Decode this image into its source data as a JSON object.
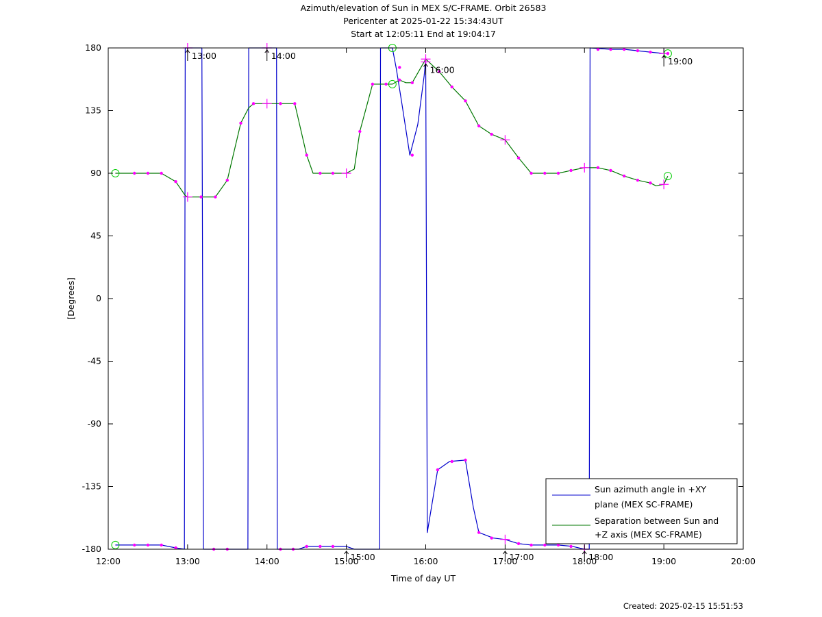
{
  "chart_data": {
    "type": "line",
    "title_lines": [
      "Azimuth/elevation of Sun in MEX S/C-FRAME.  Orbit 26583",
      "Pericenter at 2025-01-22 15:34:43UT",
      "Start at 12:05:11 End at 19:04:17"
    ],
    "xlabel": "Time of day UT",
    "ylabel": "[Degrees]",
    "xlim": [
      12,
      20
    ],
    "ylim": [
      -180,
      180
    ],
    "x_tick_labels": [
      {
        "x": 12,
        "label": "12:00"
      },
      {
        "x": 13,
        "label": "13:00"
      },
      {
        "x": 14,
        "label": "14:00"
      },
      {
        "x": 15,
        "label": "15:00"
      },
      {
        "x": 16,
        "label": "16:00"
      },
      {
        "x": 17,
        "label": "17:00"
      },
      {
        "x": 18,
        "label": "18:00"
      },
      {
        "x": 19,
        "label": "19:00"
      },
      {
        "x": 20,
        "label": "20:00"
      }
    ],
    "y_tick_labels": [
      {
        "y": 180,
        "label": "180"
      },
      {
        "y": 135,
        "label": "135"
      },
      {
        "y": 90,
        "label": "90"
      },
      {
        "y": 45,
        "label": "45"
      },
      {
        "y": 0,
        "label": "0"
      },
      {
        "y": -45,
        "label": "-45"
      },
      {
        "y": -90,
        "label": "-90"
      },
      {
        "y": -135,
        "label": "-135"
      },
      {
        "y": -180,
        "label": "-180"
      }
    ],
    "grid": false,
    "legend_position": "bottom-right",
    "series": [
      {
        "name": "Sun azimuth angle in +XY plane (MEX SC-FRAME)",
        "legend_lines": [
          "Sun azimuth angle in +XY",
          "plane (MEX SC-FRAME)"
        ],
        "color": "#0000cc",
        "points": [
          [
            12.09,
            -177
          ],
          [
            12.33,
            -177
          ],
          [
            12.5,
            -177
          ],
          [
            12.67,
            -177
          ],
          [
            12.85,
            -179
          ],
          [
            12.96,
            -180
          ],
          [
            12.97,
            180
          ],
          [
            13.18,
            180
          ],
          [
            13.2,
            -180
          ],
          [
            13.5,
            -180
          ],
          [
            13.76,
            -180
          ],
          [
            13.77,
            180
          ],
          [
            14.12,
            180
          ],
          [
            14.13,
            -180
          ],
          [
            14.4,
            -180
          ],
          [
            14.5,
            -178
          ],
          [
            15.0,
            -178
          ],
          [
            15.1,
            -180
          ],
          [
            15.42,
            -180
          ],
          [
            15.43,
            180
          ],
          [
            15.58,
            180
          ],
          [
            15.63,
            165
          ],
          [
            15.7,
            140
          ],
          [
            15.8,
            103
          ],
          [
            15.9,
            125
          ],
          [
            15.98,
            160
          ],
          [
            16.0,
            172
          ],
          [
            16.02,
            -168
          ],
          [
            16.15,
            -123
          ],
          [
            16.3,
            -117
          ],
          [
            16.5,
            -116
          ],
          [
            16.6,
            -150
          ],
          [
            16.67,
            -168
          ],
          [
            16.85,
            -172
          ],
          [
            17.0,
            -173
          ],
          [
            17.17,
            -176
          ],
          [
            17.33,
            -177
          ],
          [
            17.67,
            -177
          ],
          [
            17.85,
            -178
          ],
          [
            18.0,
            -180
          ],
          [
            18.06,
            -180
          ],
          [
            18.07,
            180
          ],
          [
            18.33,
            179
          ],
          [
            18.5,
            179
          ],
          [
            18.67,
            178
          ],
          [
            18.83,
            177
          ],
          [
            19.0,
            176
          ],
          [
            19.05,
            176
          ]
        ]
      },
      {
        "name": "Separation between Sun and +Z axis (MEX SC-FRAME)",
        "legend_lines": [
          "Separation between Sun and",
          "+Z axis (MEX SC-FRAME)"
        ],
        "color": "#007700",
        "points": [
          [
            12.09,
            90
          ],
          [
            12.33,
            90
          ],
          [
            12.5,
            90
          ],
          [
            12.67,
            90
          ],
          [
            12.85,
            84
          ],
          [
            12.97,
            74
          ],
          [
            13.0,
            73
          ],
          [
            13.17,
            73
          ],
          [
            13.35,
            73
          ],
          [
            13.5,
            85
          ],
          [
            13.67,
            126
          ],
          [
            13.77,
            137
          ],
          [
            13.83,
            140
          ],
          [
            14.0,
            140
          ],
          [
            14.17,
            140
          ],
          [
            14.35,
            140
          ],
          [
            14.5,
            103
          ],
          [
            14.58,
            90
          ],
          [
            14.83,
            90
          ],
          [
            15.0,
            90
          ],
          [
            15.1,
            93
          ],
          [
            15.17,
            120
          ],
          [
            15.33,
            154
          ],
          [
            15.58,
            154
          ],
          [
            15.67,
            157
          ],
          [
            15.75,
            155
          ],
          [
            15.83,
            155
          ],
          [
            16.0,
            172
          ],
          [
            16.17,
            163
          ],
          [
            16.33,
            152
          ],
          [
            16.5,
            142
          ],
          [
            16.67,
            124
          ],
          [
            16.83,
            118
          ],
          [
            17.0,
            114
          ],
          [
            17.17,
            101
          ],
          [
            17.33,
            90
          ],
          [
            17.5,
            90
          ],
          [
            17.67,
            90
          ],
          [
            17.83,
            92
          ],
          [
            18.0,
            94
          ],
          [
            18.17,
            94
          ],
          [
            18.33,
            92
          ],
          [
            18.5,
            88
          ],
          [
            18.67,
            85
          ],
          [
            18.83,
            83
          ],
          [
            18.9,
            81
          ],
          [
            19.0,
            82
          ],
          [
            19.05,
            88
          ]
        ]
      }
    ],
    "markers": {
      "dots": [
        [
          12.33,
          90
        ],
        [
          12.5,
          90
        ],
        [
          12.67,
          90
        ],
        [
          12.85,
          84
        ],
        [
          13.17,
          73
        ],
        [
          13.35,
          73
        ],
        [
          13.5,
          85
        ],
        [
          13.67,
          126
        ],
        [
          13.83,
          140
        ],
        [
          14.17,
          140
        ],
        [
          14.35,
          140
        ],
        [
          14.5,
          103
        ],
        [
          14.67,
          90
        ],
        [
          14.83,
          90
        ],
        [
          15.17,
          120
        ],
        [
          15.33,
          154
        ],
        [
          15.5,
          154
        ],
        [
          15.67,
          157
        ],
        [
          15.83,
          155
        ],
        [
          16.17,
          163
        ],
        [
          16.33,
          152
        ],
        [
          16.5,
          142
        ],
        [
          16.67,
          124
        ],
        [
          16.83,
          118
        ],
        [
          17.17,
          101
        ],
        [
          17.33,
          90
        ],
        [
          17.5,
          90
        ],
        [
          17.67,
          90
        ],
        [
          17.83,
          92
        ],
        [
          18.17,
          94
        ],
        [
          18.33,
          92
        ],
        [
          18.5,
          88
        ],
        [
          18.67,
          85
        ],
        [
          18.83,
          83
        ],
        [
          12.33,
          -177
        ],
        [
          12.5,
          -177
        ],
        [
          12.67,
          -177
        ],
        [
          12.85,
          -179
        ],
        [
          13.33,
          -180
        ],
        [
          13.5,
          -180
        ],
        [
          14.17,
          -180
        ],
        [
          14.33,
          -180
        ],
        [
          14.5,
          -178
        ],
        [
          14.67,
          -178
        ],
        [
          14.83,
          -178
        ],
        [
          15.67,
          166
        ],
        [
          15.83,
          103
        ],
        [
          16.15,
          -123
        ],
        [
          16.33,
          -117
        ],
        [
          16.5,
          -116
        ],
        [
          16.67,
          -168
        ],
        [
          16.83,
          -172
        ],
        [
          17.17,
          -176
        ],
        [
          17.33,
          -177
        ],
        [
          17.5,
          -177
        ],
        [
          17.67,
          -177
        ],
        [
          17.83,
          -178
        ],
        [
          18.17,
          179
        ],
        [
          18.33,
          179
        ],
        [
          18.5,
          179
        ],
        [
          18.67,
          178
        ],
        [
          18.83,
          177
        ],
        [
          19.05,
          176
        ]
      ],
      "crosses": [
        [
          13.0,
          73
        ],
        [
          14.0,
          140
        ],
        [
          15.0,
          90
        ],
        [
          16.0,
          172
        ],
        [
          17.0,
          114
        ],
        [
          18.0,
          94
        ],
        [
          19.0,
          82
        ],
        [
          13.0,
          180
        ],
        [
          14.0,
          180
        ],
        [
          16.0,
          170
        ],
        [
          17.0,
          -173
        ],
        [
          18.0,
          -180
        ],
        [
          19.0,
          176
        ]
      ],
      "circles": [
        [
          12.09,
          90
        ],
        [
          12.09,
          -177
        ],
        [
          15.58,
          180
        ],
        [
          15.58,
          154
        ],
        [
          19.05,
          88
        ],
        [
          19.05,
          176
        ]
      ]
    },
    "time_annotations": [
      {
        "x": 13.0,
        "y": 180,
        "label": "13:00"
      },
      {
        "x": 14.0,
        "y": 180,
        "label": "14:00"
      },
      {
        "x": 15.0,
        "y": -180,
        "label": "15:00"
      },
      {
        "x": 16.0,
        "y": 170,
        "label": "16:00"
      },
      {
        "x": 17.0,
        "y": -180,
        "label": "17:00"
      },
      {
        "x": 18.0,
        "y": -180,
        "label": "18:00"
      },
      {
        "x": 19.0,
        "y": 176,
        "label": "19:00"
      }
    ]
  },
  "footer": {
    "created": "Created: 2025-02-15 15:51:53"
  }
}
